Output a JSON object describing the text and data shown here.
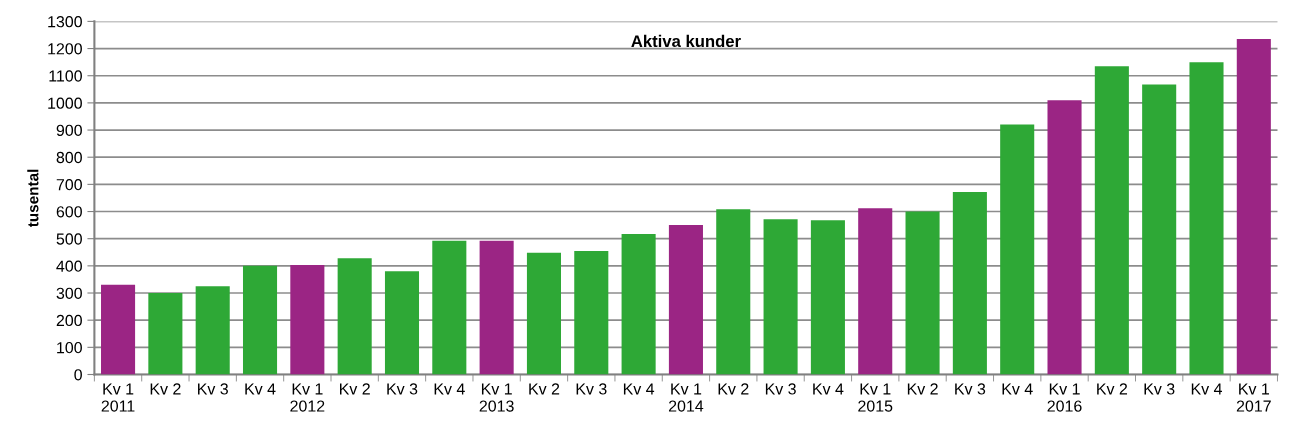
{
  "chart_data": {
    "type": "bar",
    "title": "Aktiva kunder",
    "ylabel": "tusental",
    "categories": [
      "Kv 1\n2011",
      "Kv 2",
      "Kv 3",
      "Kv 4",
      "Kv 1\n2012",
      "Kv 2",
      "Kv 3",
      "Kv 4",
      "Kv 1\n2013",
      "Kv 2",
      "Kv 3",
      "Kv 4",
      "Kv 1\n2014",
      "Kv 2",
      "Kv 3",
      "Kv 4",
      "Kv 1\n2015",
      "Kv 2",
      "Kv 3",
      "Kv 4",
      "Kv 1\n2016",
      "Kv 2",
      "Kv 3",
      "Kv 4",
      "Kv 1\n2017"
    ],
    "values": [
      330,
      300,
      325,
      400,
      403,
      428,
      380,
      492,
      492,
      448,
      455,
      517,
      550,
      608,
      572,
      568,
      612,
      600,
      672,
      920,
      1010,
      1135,
      1068,
      1150,
      1235
    ],
    "colors": [
      "#9b2584",
      "#2ea836",
      "#2ea836",
      "#2ea836",
      "#9b2584",
      "#2ea836",
      "#2ea836",
      "#2ea836",
      "#9b2584",
      "#2ea836",
      "#2ea836",
      "#2ea836",
      "#9b2584",
      "#2ea836",
      "#2ea836",
      "#2ea836",
      "#9b2584",
      "#2ea836",
      "#2ea836",
      "#2ea836",
      "#9b2584",
      "#2ea836",
      "#2ea836",
      "#2ea836",
      "#9b2584"
    ],
    "ylim": [
      0,
      1300
    ],
    "yticks": [
      0,
      100,
      200,
      300,
      400,
      500,
      600,
      700,
      800,
      900,
      1000,
      1100,
      1200,
      1300
    ],
    "grid": "y",
    "legend": false
  }
}
